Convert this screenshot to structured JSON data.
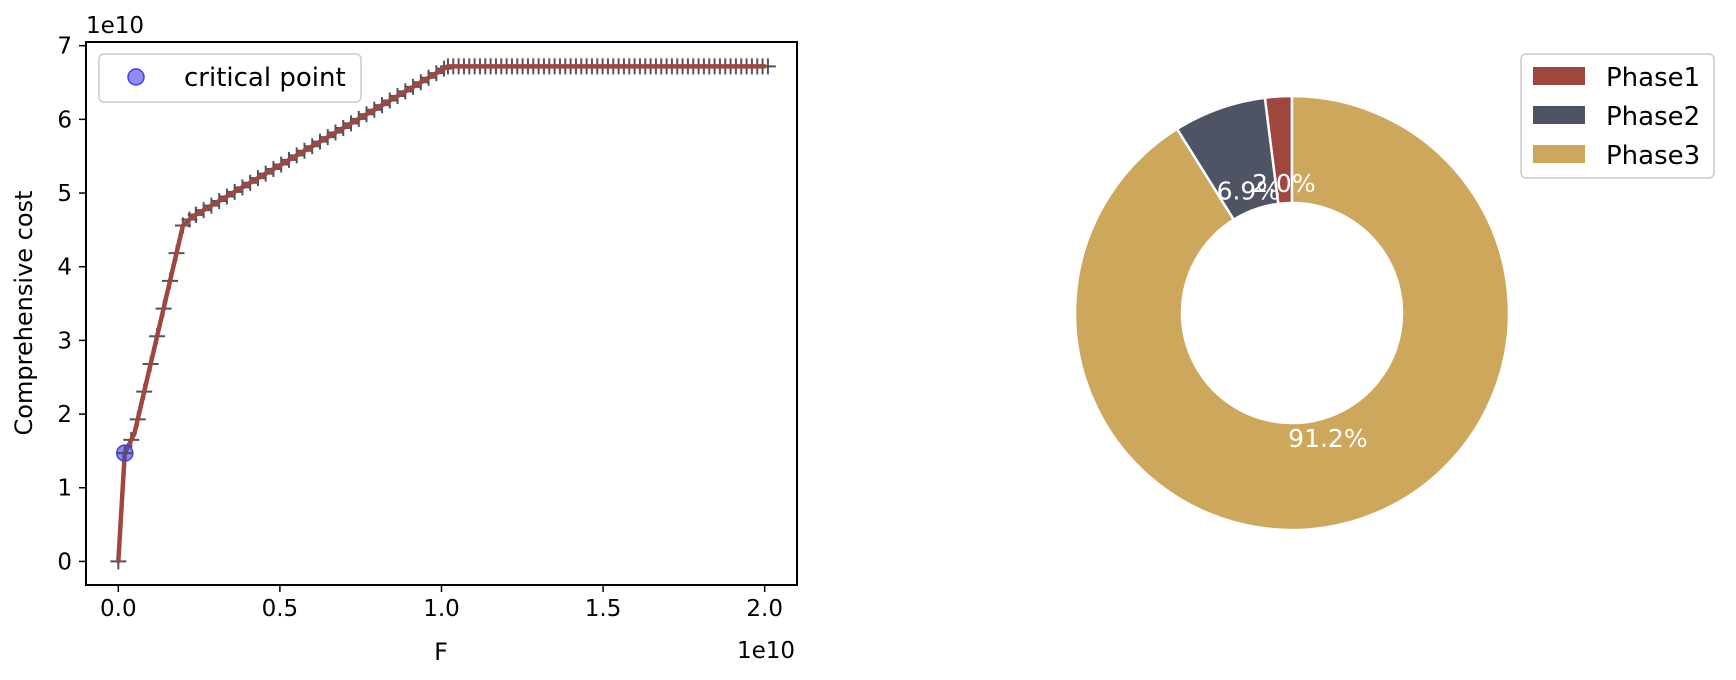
{
  "chart_data": [
    {
      "type": "line",
      "xlabel": "F",
      "ylabel": "Comprehensive cost",
      "x_offset_text": "1e10",
      "y_offset_text": "1e10",
      "x_multiplier": 10000000000.0,
      "y_multiplier": 10000000000.0,
      "xlim": [
        -0.1,
        2.1
      ],
      "ylim": [
        -0.32,
        7.05
      ],
      "x_ticks": [
        0.0,
        0.5,
        1.0,
        1.5,
        2.0
      ],
      "x_tick_labels": [
        "0.0",
        "0.5",
        "1.0",
        "1.5",
        "2.0"
      ],
      "y_ticks": [
        0,
        1,
        2,
        3,
        4,
        5,
        6,
        7
      ],
      "y_tick_labels": [
        "0",
        "1",
        "2",
        "3",
        "4",
        "5",
        "6",
        "7"
      ],
      "series": [
        {
          "style": "line with + markers",
          "color": "#a0473d",
          "marker_color": "#4f5464",
          "x": [
            0.0,
            0.02,
            0.05,
            0.2,
            0.23,
            1.02,
            2.0
          ],
          "y": [
            0.0,
            1.47,
            1.74,
            4.56,
            4.68,
            6.72,
            6.72
          ],
          "marker_x_ranges": [
            [
              0.0,
              0.24,
              0.02
            ],
            [
              0.24,
              1.02,
              0.024
            ],
            [
              1.02,
              2.01,
              0.0165
            ]
          ]
        },
        {
          "name": "critical point",
          "style": "scatter",
          "color": "#3f3fe8",
          "x": [
            0.02
          ],
          "y": [
            1.47
          ]
        }
      ],
      "legend": {
        "placement": "upper left",
        "entries": [
          "critical point"
        ]
      },
      "grid": false
    },
    {
      "type": "pie",
      "donut": true,
      "start_angle_deg": 90,
      "direction": "counterclockwise",
      "categories": [
        "Phase1",
        "Phase2",
        "Phase3"
      ],
      "values": [
        2.0,
        6.9,
        91.2
      ],
      "labels": [
        "2.0%",
        "6.9%",
        "91.2%"
      ],
      "colors": [
        "#a0473d",
        "#4f5464",
        "#cda85c"
      ],
      "legend": {
        "placement": "upper right",
        "entries": [
          "Phase1",
          "Phase2",
          "Phase3"
        ]
      }
    }
  ]
}
